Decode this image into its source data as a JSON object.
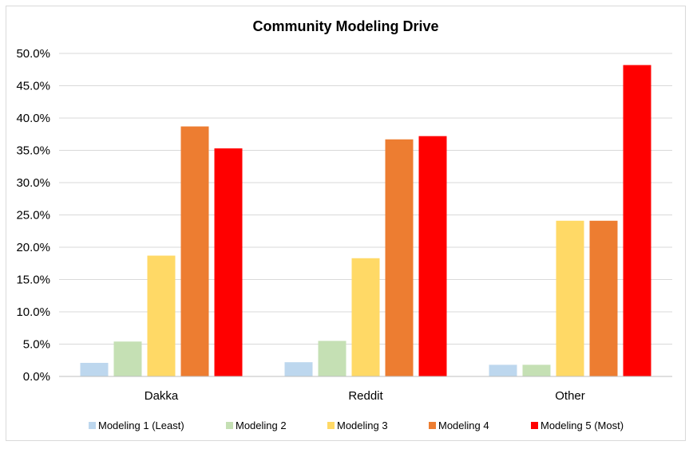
{
  "chart_data": {
    "type": "bar",
    "title": "Community Modeling Drive",
    "xlabel": "",
    "ylabel": "",
    "categories": [
      "Dakka",
      "Reddit",
      "Other"
    ],
    "y_ticks": [
      "0.0%",
      "5.0%",
      "10.0%",
      "15.0%",
      "20.0%",
      "25.0%",
      "30.0%",
      "35.0%",
      "40.0%",
      "45.0%",
      "50.0%"
    ],
    "ylim": [
      0,
      50
    ],
    "y_unit": "%",
    "grid": true,
    "legend_position": "bottom",
    "series": [
      {
        "name": "Modeling 1 (Least)",
        "color": "#bdd7ee",
        "values": [
          2.1,
          2.2,
          1.8
        ]
      },
      {
        "name": "Modeling 2",
        "color": "#c5e0b4",
        "values": [
          5.4,
          5.5,
          1.8
        ]
      },
      {
        "name": "Modeling 3",
        "color": "#ffd966",
        "values": [
          18.7,
          18.3,
          24.1
        ]
      },
      {
        "name": "Modeling 4",
        "color": "#ed7d31",
        "values": [
          38.7,
          36.7,
          24.1
        ]
      },
      {
        "name": "Modeling 5 (Most)",
        "color": "#ff0000",
        "values": [
          35.3,
          37.2,
          48.2
        ]
      }
    ]
  }
}
